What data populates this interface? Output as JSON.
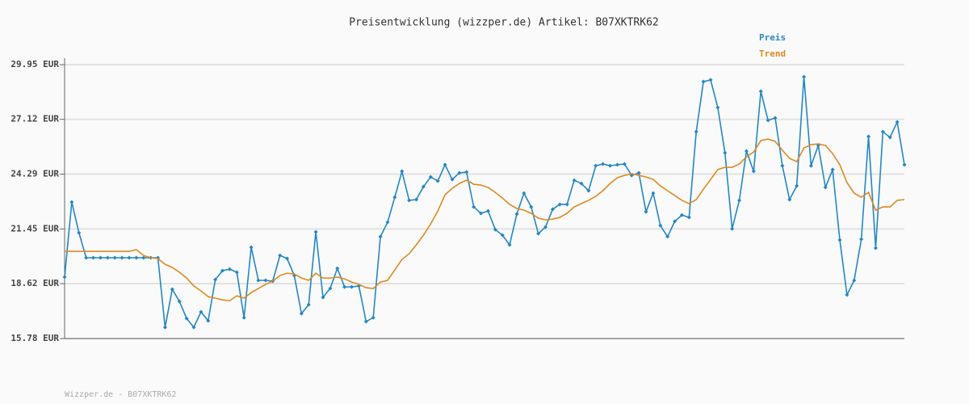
{
  "chart_data": {
    "type": "line",
    "title": "Preisentwicklung (wizzper.de) Artikel: B07XKTRK62",
    "footer": "Wizzper.de - B07XKTRK62",
    "ylim": [
      15.78,
      29.95
    ],
    "yticks": [
      {
        "value": 15.78,
        "label": "15.78 EUR"
      },
      {
        "value": 18.62,
        "label": "18.62 EUR"
      },
      {
        "value": 21.45,
        "label": "21.45 EUR"
      },
      {
        "value": 24.29,
        "label": "24.29 EUR"
      },
      {
        "value": 27.12,
        "label": "27.12 EUR"
      },
      {
        "value": 29.95,
        "label": "29.95 EUR"
      }
    ],
    "grid": true,
    "legend": "top-right",
    "series": [
      {
        "name": "Preis",
        "color": "#2387c5",
        "markers": true,
        "values": [
          18.96,
          22.84,
          21.25,
          19.96,
          19.96,
          19.96,
          19.96,
          19.96,
          19.96,
          19.96,
          19.96,
          19.96,
          19.96,
          19.96,
          16.36,
          18.33,
          17.7,
          16.82,
          16.36,
          17.16,
          16.7,
          18.83,
          19.29,
          19.37,
          19.21,
          16.86,
          20.5,
          18.79,
          18.79,
          18.75,
          20.08,
          19.92,
          19.04,
          17.07,
          17.53,
          21.3,
          17.91,
          18.37,
          19.41,
          18.45,
          18.45,
          18.5,
          16.66,
          16.86,
          21.05,
          21.8,
          23.09,
          24.43,
          22.93,
          22.97,
          23.64,
          24.14,
          23.93,
          24.77,
          24.01,
          24.35,
          24.39,
          22.59,
          22.26,
          22.38,
          21.42,
          21.13,
          20.63,
          22.22,
          23.3,
          22.59,
          21.21,
          21.55,
          22.47,
          22.72,
          22.72,
          23.97,
          23.8,
          23.43,
          24.72,
          24.81,
          24.72,
          24.77,
          24.81,
          24.22,
          24.35,
          22.34,
          23.3,
          21.63,
          21.05,
          21.84,
          22.17,
          22.05,
          26.48,
          29.07,
          29.16,
          27.73,
          25.39,
          21.46,
          22.93,
          25.48,
          24.43,
          28.57,
          27.07,
          27.19,
          24.72,
          22.97,
          23.68,
          29.32,
          24.72,
          25.77,
          23.6,
          24.52,
          20.88,
          18.04,
          18.79,
          20.92,
          26.23,
          20.46,
          26.48,
          26.19,
          26.98,
          24.77
        ]
      },
      {
        "name": "Trend",
        "color": "#e0891f",
        "markers": false,
        "values": [
          20.29,
          20.29,
          20.29,
          20.29,
          20.29,
          20.29,
          20.29,
          20.29,
          20.29,
          20.29,
          20.38,
          20.08,
          19.96,
          19.92,
          19.62,
          19.46,
          19.21,
          18.91,
          18.5,
          18.24,
          17.95,
          17.87,
          17.78,
          17.74,
          17.99,
          17.87,
          18.16,
          18.37,
          18.58,
          18.75,
          19.04,
          19.16,
          19.12,
          18.91,
          18.79,
          19.16,
          18.91,
          18.91,
          18.96,
          18.87,
          18.7,
          18.58,
          18.41,
          18.37,
          18.7,
          18.79,
          19.33,
          19.87,
          20.17,
          20.63,
          21.13,
          21.71,
          22.38,
          23.22,
          23.55,
          23.8,
          23.97,
          23.76,
          23.72,
          23.6,
          23.34,
          23.05,
          22.72,
          22.51,
          22.42,
          22.26,
          22.01,
          21.92,
          21.96,
          22.05,
          22.26,
          22.59,
          22.76,
          22.93,
          23.14,
          23.43,
          23.8,
          24.1,
          24.22,
          24.31,
          24.22,
          24.14,
          24.01,
          23.68,
          23.43,
          23.18,
          22.93,
          22.76,
          22.97,
          23.51,
          24.01,
          24.52,
          24.64,
          24.64,
          24.81,
          25.18,
          25.43,
          26.02,
          26.1,
          25.98,
          25.52,
          25.1,
          24.93,
          25.64,
          25.81,
          25.85,
          25.77,
          25.35,
          24.77,
          23.85,
          23.3,
          23.09,
          23.34,
          22.42,
          22.59,
          22.59,
          22.93,
          22.97
        ]
      }
    ]
  }
}
